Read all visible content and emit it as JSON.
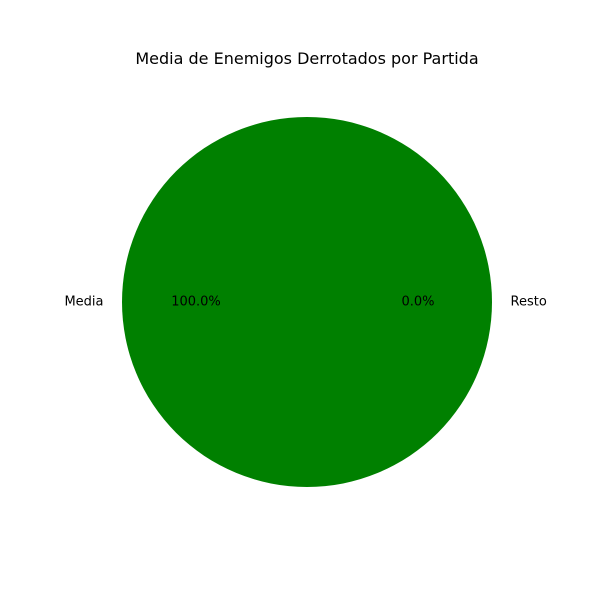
{
  "chart_data": {
    "type": "pie",
    "title": "Media de Enemigos Derrotados por Partida",
    "slices": [
      {
        "label": "Media",
        "value": 100.0,
        "percent_label": "100.0%",
        "color": "#008000"
      },
      {
        "label": "Resto",
        "value": 0.0,
        "percent_label": "0.0%",
        "color": "#ff0000"
      }
    ],
    "legend": "none"
  }
}
